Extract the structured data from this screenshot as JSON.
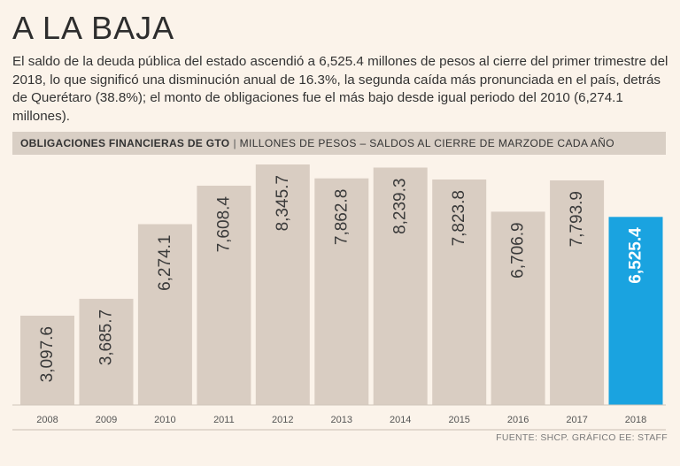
{
  "headline": "A LA BAJA",
  "lede": "El saldo de la deuda pública del estado ascendió a 6,525.4 millones de pesos al cierre del primer trimestre del 2018, lo que significó una disminución anual de 16.3%, la segunda caída más pronunciada en el país, detrás de Querétaro (38.8%); el monto de obligaciones fue el más bajo desde igual periodo del 2010 (6,274.1 millones).",
  "chart_header": {
    "title": "OBLIGACIONES FINANCIERAS DE GTO",
    "separator": "|",
    "subtitle": "MILLONES DE PESOS – SALDOS AL CIERRE DE MARZODE CADA AÑO"
  },
  "source": "FUENTE: SHCP. GRÁFICO EE: STAFF",
  "colors": {
    "bar": "#d9cdc2",
    "highlight": "#1aa3e0",
    "background": "#fbf3ea"
  },
  "chart_data": {
    "type": "bar",
    "categories": [
      "2008",
      "2009",
      "2010",
      "2011",
      "2012",
      "2013",
      "2014",
      "2015",
      "2016",
      "2017",
      "2018"
    ],
    "values": [
      3097.6,
      3685.7,
      6274.1,
      7608.4,
      8345.7,
      7862.8,
      8239.3,
      7823.8,
      6706.9,
      7793.9,
      6525.4
    ],
    "labels": [
      "3,097.6",
      "3,685.7",
      "6,274.1",
      "7,608.4",
      "8,345.7",
      "7,862.8",
      "8,239.3",
      "7,823.8",
      "6,706.9",
      "7,793.9",
      "6,525.4"
    ],
    "highlight_category": "2018",
    "ylim": [
      0,
      8345.7
    ],
    "grid": false,
    "title": "OBLIGACIONES FINANCIERAS DE GTO",
    "xlabel": "",
    "ylabel": ""
  }
}
